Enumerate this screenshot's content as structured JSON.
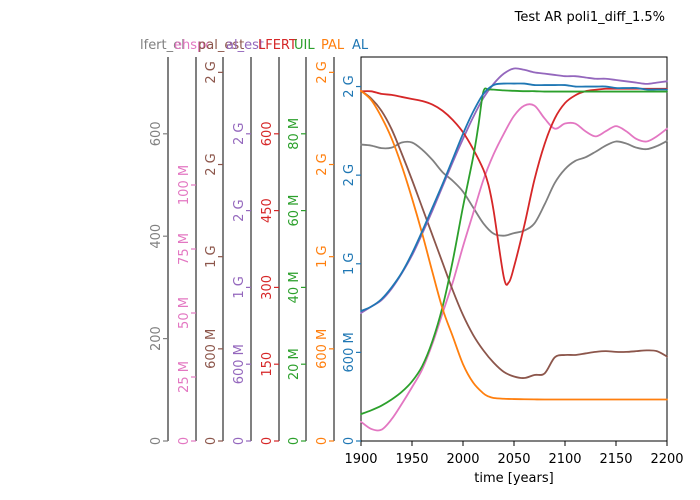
{
  "chart_data": {
    "type": "line",
    "title": "Test AR poli1_diff_1.5%",
    "xlabel": "time [years]",
    "xlim": [
      1900,
      2200
    ],
    "x_ticks": [
      "1900",
      "1950",
      "2000",
      "2050",
      "2100",
      "2150",
      "2200"
    ],
    "axes": [
      {
        "name": "lfert",
        "color": "#808080",
        "max": 750,
        "ticks": [
          "0",
          "200",
          "400",
          "600"
        ],
        "tick_values": [
          0,
          200,
          400,
          600
        ]
      },
      {
        "name": "ehspc",
        "color": "#e377c2",
        "max": 150000000,
        "ticks": [
          "0",
          "25 M",
          "50 M",
          "75 M",
          "100 M"
        ],
        "tick_values": [
          0,
          25000000,
          50000000,
          75000000,
          100000000
        ]
      },
      {
        "name": "pal_est",
        "color": "#8c564b",
        "max": 2500000000,
        "ticks": [
          "0",
          "600 M",
          "1 G",
          "2 G",
          "2 G"
        ],
        "tick_values": [
          0,
          600000000,
          1200000000,
          1800000000,
          2400000000
        ]
      },
      {
        "name": "al_est",
        "color": "#9467bd",
        "max": 3000000000,
        "ticks": [
          "0",
          "600 M",
          "1 G",
          "2 G",
          "2 G"
        ],
        "tick_values": [
          0,
          600000000,
          1200000000,
          1800000000,
          2400000000
        ]
      },
      {
        "name": "LFERT",
        "color": "#d62728",
        "max": 750,
        "ticks": [
          "0",
          "150",
          "300",
          "450",
          "600"
        ],
        "tick_values": [
          0,
          150,
          300,
          450,
          600
        ]
      },
      {
        "name": "UIL",
        "color": "#2ca02c",
        "max": 100,
        "ticks": [
          "0",
          "20 M",
          "40 M",
          "60 M",
          "80 M"
        ],
        "tick_values": [
          0,
          20,
          40,
          60,
          80
        ]
      },
      {
        "name": "PAL",
        "color": "#ff7f0e",
        "max": 2500000000,
        "ticks": [
          "0",
          "600 M",
          "1 G",
          "2 G",
          "2 G"
        ],
        "tick_values": [
          0,
          600000000,
          1200000000,
          1800000000,
          2400000000
        ]
      },
      {
        "name": "AL",
        "color": "#1f77b4",
        "max": 2600000000,
        "ticks": [
          "0",
          "600 M",
          "1 G",
          "2 G",
          "2 G"
        ],
        "tick_values": [
          0,
          600000000,
          1200000000,
          1800000000,
          2400000000
        ]
      }
    ],
    "header_labels": [
      "lfert_el",
      "ehspc",
      "pal_est",
      "al_est",
      "LFERT",
      "UIL",
      "PAL",
      "AL"
    ],
    "series": [
      {
        "name": "lfert",
        "axis": 0,
        "x": [
          1900,
          1910,
          1920,
          1930,
          1940,
          1950,
          1960,
          1970,
          1980,
          1990,
          2000,
          2010,
          2020,
          2030,
          2040,
          2050,
          2060,
          2070,
          2080,
          2090,
          2100,
          2110,
          2120,
          2130,
          2140,
          2150,
          2160,
          2170,
          2180,
          2190,
          2200
        ],
        "y": [
          579,
          577,
          572,
          573,
          583,
          583,
          569,
          549,
          525,
          508,
          487,
          456,
          425,
          405,
          401,
          406,
          411,
          425,
          462,
          504,
          531,
          547,
          554,
          565,
          577,
          585,
          581,
          573,
          570,
          576,
          586
        ]
      },
      {
        "name": "ehspc",
        "axis": 1,
        "x": [
          1900,
          1910,
          1920,
          1930,
          1940,
          1950,
          1960,
          1970,
          1980,
          1990,
          2000,
          2010,
          2020,
          2030,
          2040,
          2050,
          2060,
          2070,
          2080,
          2090,
          2100,
          2110,
          2120,
          2130,
          2140,
          2150,
          2160,
          2170,
          2180,
          2190,
          2200
        ],
        "y": [
          7500000,
          4700000,
          4400000,
          8500000,
          14500000,
          21000000,
          28000000,
          38000000,
          50000000,
          62000000,
          76000000,
          89000000,
          102000000,
          112000000,
          120000000,
          127000000,
          131000000,
          131000000,
          126000000,
          122000000,
          124000000,
          124000000,
          121000000,
          119000000,
          121000000,
          123000000,
          121000000,
          118000000,
          117000000,
          119000000,
          122000000
        ]
      },
      {
        "name": "pal_est",
        "axis": 2,
        "x": [
          1900,
          1910,
          1920,
          1930,
          1940,
          1950,
          1960,
          1970,
          1980,
          1990,
          2000,
          2010,
          2020,
          2030,
          2040,
          2050,
          2060,
          2070,
          2080,
          2090,
          2100,
          2110,
          2120,
          2130,
          2140,
          2150,
          2160,
          2170,
          2180,
          2190,
          2200
        ],
        "y": [
          2280000000,
          2230000000,
          2150000000,
          2030000000,
          1870000000,
          1700000000,
          1520000000,
          1340000000,
          1160000000,
          980000000,
          820000000,
          690000000,
          590000000,
          510000000,
          450000000,
          420000000,
          410000000,
          430000000,
          440000000,
          545000000,
          560000000,
          560000000,
          570000000,
          580000000,
          585000000,
          580000000,
          580000000,
          585000000,
          590000000,
          585000000,
          550000000
        ]
      },
      {
        "name": "al_est",
        "axis": 3,
        "x": [
          1900,
          1910,
          1920,
          1930,
          1940,
          1950,
          1960,
          1970,
          1980,
          1990,
          2000,
          2010,
          2020,
          2030,
          2040,
          2050,
          2060,
          2070,
          2080,
          2090,
          2100,
          2110,
          2120,
          2130,
          2140,
          2150,
          2160,
          2170,
          2180,
          2190,
          2200
        ],
        "y": [
          1000000000,
          1050000000,
          1100000000,
          1190000000,
          1310000000,
          1450000000,
          1620000000,
          1800000000,
          1990000000,
          2180000000,
          2360000000,
          2530000000,
          2680000000,
          2790000000,
          2870000000,
          2910000000,
          2900000000,
          2880000000,
          2870000000,
          2860000000,
          2850000000,
          2850000000,
          2840000000,
          2830000000,
          2830000000,
          2820000000,
          2810000000,
          2800000000,
          2790000000,
          2800000000,
          2810000000
        ]
      },
      {
        "name": "LFERT",
        "axis": 4,
        "x": [
          1900,
          1910,
          1920,
          1930,
          1940,
          1950,
          1960,
          1970,
          1980,
          1990,
          2000,
          2010,
          2020,
          2025,
          2030,
          2040,
          2045,
          2050,
          2060,
          2070,
          2080,
          2090,
          2100,
          2110,
          2120,
          2130,
          2140,
          2150,
          2160,
          2170,
          2180,
          2190,
          2200
        ],
        "y": [
          683,
          683,
          678,
          676,
          672,
          668,
          664,
          657,
          645,
          627,
          603,
          570,
          530,
          500,
          450,
          320,
          310,
          340,
          420,
          510,
          580,
          630,
          660,
          675,
          683,
          686,
          688,
          688,
          688,
          688,
          688,
          688,
          688
        ]
      },
      {
        "name": "UIL",
        "axis": 5,
        "x": [
          1900,
          1910,
          1920,
          1930,
          1940,
          1950,
          1960,
          1970,
          1980,
          1990,
          2000,
          2010,
          2015,
          2020,
          2025,
          2030,
          2040,
          2050,
          2060,
          2070,
          2080,
          2090,
          2100,
          2110,
          2120,
          2130,
          2140,
          2150,
          2160,
          2170,
          2180,
          2190,
          2200
        ],
        "y": [
          7,
          8,
          9.2,
          10.8,
          12.8,
          15.5,
          19.5,
          26,
          35,
          47,
          61,
          74,
          82,
          91,
          91.5,
          91.5,
          91.3,
          91.2,
          91.1,
          91.1,
          91,
          91,
          91,
          91,
          91,
          91,
          91,
          91,
          91,
          91,
          91,
          91,
          91
        ]
      },
      {
        "name": "PAL",
        "axis": 6,
        "x": [
          1900,
          1910,
          1920,
          1930,
          1940,
          1950,
          1960,
          1970,
          1980,
          1990,
          2000,
          2010,
          2020,
          2025,
          2030,
          2040,
          2050,
          2060,
          2070,
          2080,
          2090,
          2100,
          2110,
          2120,
          2130,
          2140,
          2150,
          2160,
          2170,
          2180,
          2190,
          2200
        ],
        "y": [
          2280000000,
          2220000000,
          2110000000,
          1970000000,
          1790000000,
          1580000000,
          1350000000,
          1100000000,
          860000000,
          680000000,
          500000000,
          380000000,
          310000000,
          290000000,
          280000000,
          275000000,
          273000000,
          272000000,
          271000000,
          270000000,
          270000000,
          270000000,
          270000000,
          270000000,
          270000000,
          270000000,
          270000000,
          270000000,
          270000000,
          270000000,
          270000000,
          270000000
        ]
      },
      {
        "name": "AL",
        "axis": 7,
        "x": [
          1900,
          1910,
          1920,
          1930,
          1940,
          1950,
          1960,
          1970,
          1980,
          1990,
          2000,
          2010,
          2020,
          2030,
          2040,
          2050,
          2060,
          2070,
          2080,
          2090,
          2100,
          2110,
          2120,
          2130,
          2140,
          2150,
          2160,
          2170,
          2180,
          2190,
          2200
        ],
        "y": [
          880000000,
          910000000,
          960000000,
          1040000000,
          1140000000,
          1270000000,
          1420000000,
          1580000000,
          1740000000,
          1910000000,
          2080000000,
          2230000000,
          2350000000,
          2410000000,
          2420000000,
          2420000000,
          2420000000,
          2410000000,
          2410000000,
          2410000000,
          2410000000,
          2400000000,
          2400000000,
          2400000000,
          2400000000,
          2390000000,
          2390000000,
          2390000000,
          2380000000,
          2380000000,
          2380000000
        ]
      }
    ]
  }
}
